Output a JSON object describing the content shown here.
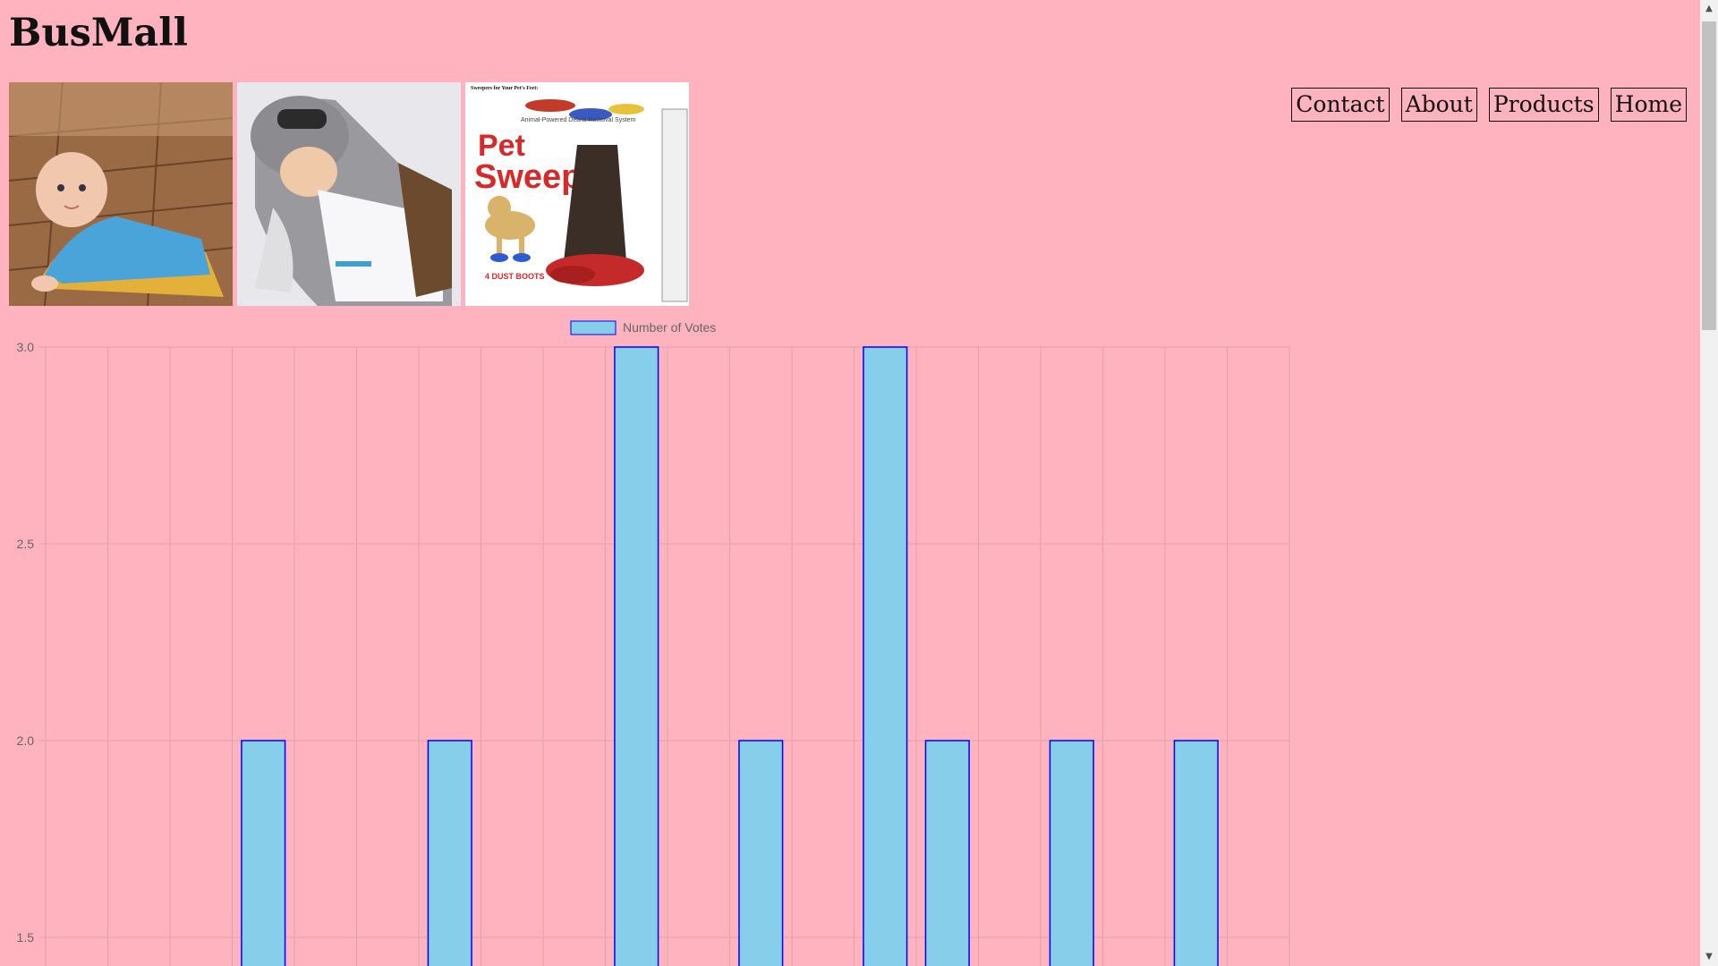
{
  "site": {
    "title": "BusMall"
  },
  "nav": {
    "items": [
      {
        "label": "Contact"
      },
      {
        "label": "About"
      },
      {
        "label": "Products"
      },
      {
        "label": "Home"
      }
    ]
  },
  "products": [
    {
      "name": "baby-sweep",
      "caption": ""
    },
    {
      "name": "tauntaun-sleeping-bag",
      "caption": ""
    },
    {
      "name": "pet-sweep",
      "box_header": "Sweepers for Your Pet's Feet:",
      "box_title_1": "Pet",
      "box_title_2": "Sweep",
      "box_sub": "Animal-Powered Debris Removal System",
      "box_footer": "4 DUST BOOTS"
    }
  ],
  "colors": {
    "background": "#ffb3bf",
    "bar_fill": "#87ceeb",
    "bar_border": "#0000ff",
    "grid": "#e0a0aa"
  },
  "chart_data": {
    "type": "bar",
    "legend": {
      "position": "top-center",
      "label": "Number of Votes"
    },
    "categories": [
      "",
      "",
      "",
      "",
      "",
      "",
      "",
      "",
      "",
      "",
      "",
      "",
      "",
      "",
      "",
      "",
      "",
      "",
      "",
      ""
    ],
    "series": [
      {
        "name": "Number of Votes",
        "values": [
          null,
          null,
          null,
          2,
          null,
          null,
          2,
          null,
          null,
          3,
          null,
          2,
          null,
          3,
          2,
          null,
          2,
          null,
          2,
          null
        ]
      }
    ],
    "y_ticks": [
      "3.0",
      "2.5",
      "2.0",
      "1.5"
    ],
    "ylim_visible": [
      1.5,
      3.0
    ],
    "grid": true
  },
  "scrollbar": {
    "up": "▲",
    "down": "▼"
  }
}
